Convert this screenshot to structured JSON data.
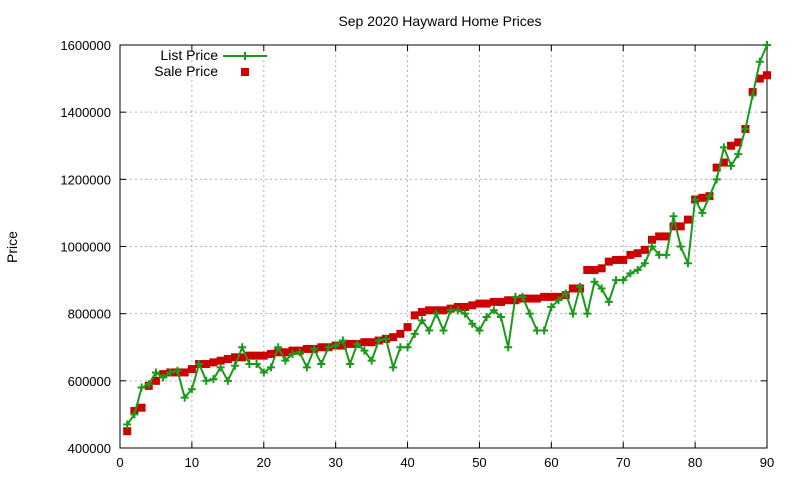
{
  "chart_data": {
    "type": "line",
    "title": "Sep 2020 Hayward Home Prices",
    "xlabel": "",
    "ylabel": "Price",
    "xlim": [
      0,
      90
    ],
    "ylim": [
      400000,
      1600000
    ],
    "xticks": [
      0,
      10,
      20,
      30,
      40,
      50,
      60,
      70,
      80,
      90
    ],
    "yticks": [
      400000,
      600000,
      800000,
      1000000,
      1200000,
      1400000,
      1600000
    ],
    "grid": true,
    "legend_position": "top-left",
    "x": [
      1,
      2,
      3,
      4,
      5,
      6,
      7,
      8,
      9,
      10,
      11,
      12,
      13,
      14,
      15,
      16,
      17,
      18,
      19,
      20,
      21,
      22,
      23,
      24,
      25,
      26,
      27,
      28,
      29,
      30,
      31,
      32,
      33,
      34,
      35,
      36,
      37,
      38,
      39,
      40,
      41,
      42,
      43,
      44,
      45,
      46,
      47,
      48,
      49,
      50,
      51,
      52,
      53,
      54,
      55,
      56,
      57,
      58,
      59,
      60,
      61,
      62,
      63,
      64,
      65,
      66,
      67,
      68,
      69,
      70,
      71,
      72,
      73,
      74,
      75,
      76,
      77,
      78,
      79,
      80,
      81,
      82,
      83,
      84,
      85,
      86,
      87,
      88,
      89,
      90
    ],
    "series": [
      {
        "name": "List Price",
        "style": "line-points",
        "color": "#1a9a1a",
        "values": [
          470000,
          500000,
          580000,
          590000,
          625000,
          610000,
          625000,
          630000,
          550000,
          575000,
          650000,
          600000,
          605000,
          640000,
          600000,
          645000,
          700000,
          650000,
          650000,
          625000,
          640000,
          700000,
          660000,
          680000,
          685000,
          640000,
          695000,
          650000,
          700000,
          705000,
          720000,
          650000,
          710000,
          690000,
          660000,
          720000,
          725000,
          640000,
          700000,
          700000,
          740000,
          780000,
          750000,
          800000,
          750000,
          810000,
          810000,
          800000,
          770000,
          750000,
          790000,
          810000,
          790000,
          700000,
          850000,
          850000,
          800000,
          750000,
          750000,
          820000,
          840000,
          860000,
          800000,
          880000,
          800000,
          895000,
          875000,
          835000,
          900000,
          900000,
          920000,
          930000,
          950000,
          1000000,
          975000,
          975000,
          1090000,
          1000000,
          950000,
          1140000,
          1100000,
          1150000,
          1200000,
          1295000,
          1240000,
          1275000,
          1350000,
          1450000,
          1550000,
          1600000
        ]
      },
      {
        "name": "Sale Price",
        "style": "points",
        "color": "#cc0000",
        "values": [
          450000,
          510000,
          520000,
          585000,
          600000,
          620000,
          625000,
          625000,
          625000,
          635000,
          650000,
          650000,
          655000,
          660000,
          665000,
          670000,
          670000,
          675000,
          675000,
          675000,
          680000,
          685000,
          685000,
          690000,
          690000,
          695000,
          695000,
          700000,
          700000,
          705000,
          705000,
          710000,
          710000,
          715000,
          715000,
          720000,
          725000,
          730000,
          740000,
          760000,
          795000,
          805000,
          810000,
          810000,
          810000,
          815000,
          820000,
          820000,
          825000,
          830000,
          830000,
          835000,
          835000,
          840000,
          840000,
          845000,
          845000,
          845000,
          850000,
          850000,
          850000,
          855000,
          875000,
          875000,
          930000,
          930000,
          935000,
          955000,
          960000,
          960000,
          975000,
          980000,
          990000,
          1020000,
          1030000,
          1030000,
          1060000,
          1060000,
          1080000,
          1140000,
          1145000,
          1150000,
          1235000,
          1250000,
          1300000,
          1310000,
          1350000,
          1460000,
          1500000,
          1510000
        ]
      }
    ]
  }
}
